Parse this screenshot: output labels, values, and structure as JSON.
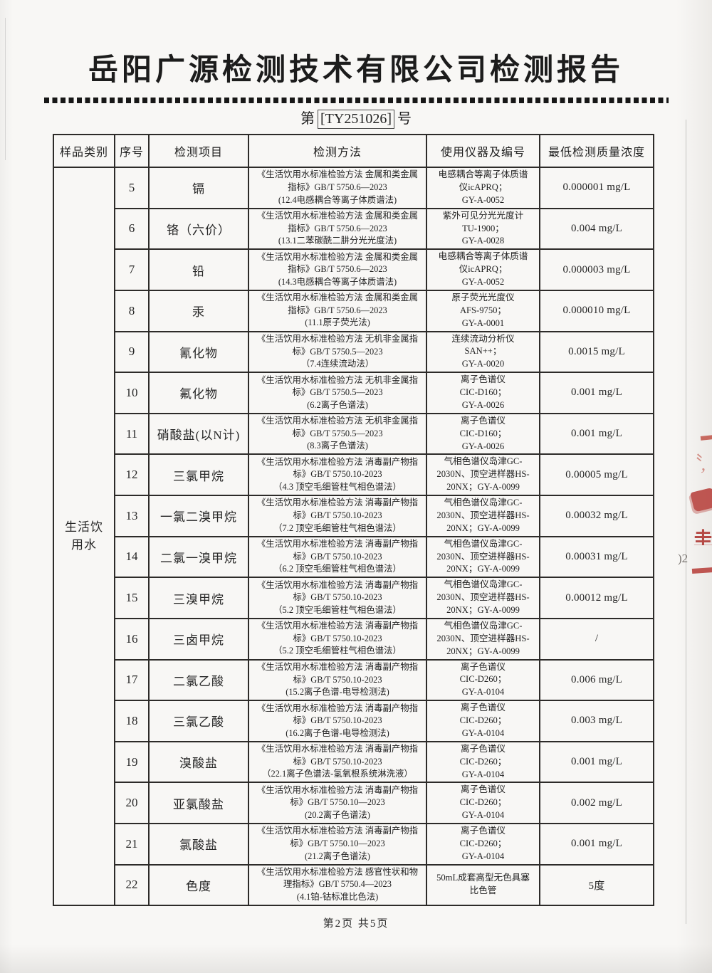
{
  "page": {
    "title": "岳阳广源检测技术有限公司检测报告",
    "doc_no_prefix": "第",
    "doc_no": "[TY251026]",
    "doc_no_suffix": "号",
    "footer": "第2页 共5页"
  },
  "edge_marks": {
    "stamp_color": "#b2302a",
    "stroke_fragment": "〝,",
    "char_fragment": "圭",
    "digits_fragment": ")2"
  },
  "table": {
    "category": "生活饮用水",
    "headers": [
      "样品类别",
      "序号",
      "检测项目",
      "检测方法",
      "使用仪器及编号",
      "最低检测质量浓度"
    ],
    "rows": [
      {
        "no": "5",
        "item": "镉",
        "method": [
          "《生活饮用水标准检验方法 金属和类金属",
          "指标》GB/T 5750.6—2023",
          "(12.4电感耦合等离子体质谱法)"
        ],
        "instrument": [
          "电感耦合等离子体质谱",
          "仪icAPRQ；",
          "GY-A-0052"
        ],
        "limit": "0.000001 mg/L"
      },
      {
        "no": "6",
        "item": "铬（六价）",
        "method": [
          "《生活饮用水标准检验方法 金属和类金属",
          "指标》GB/T 5750.6—2023",
          "(13.1二苯碳酰二肼分光光度法)"
        ],
        "instrument": [
          "紫外可见分光光度计",
          "TU-1900；",
          "GY-A-0028"
        ],
        "limit": "0.004 mg/L"
      },
      {
        "no": "7",
        "item": "铅",
        "method": [
          "《生活饮用水标准检验方法 金属和类金属",
          "指标》GB/T 5750.6—2023",
          "(14.3电感耦合等离子体质谱法)"
        ],
        "instrument": [
          "电感耦合等离子体质谱",
          "仪icAPRQ；",
          "GY-A-0052"
        ],
        "limit": "0.000003 mg/L"
      },
      {
        "no": "8",
        "item": "汞",
        "method": [
          "《生活饮用水标准检验方法 金属和类金属",
          "指标》GB/T 5750.6—2023",
          "(11.1原子荧光法)"
        ],
        "instrument": [
          "原子荧光光度仪",
          "AFS-9750；",
          "GY-A-0001"
        ],
        "limit": "0.000010 mg/L"
      },
      {
        "no": "9",
        "item": "氰化物",
        "method": [
          "《生活饮用水标准检验方法 无机非金属指",
          "标》GB/T 5750.5—2023",
          "（7.4连续流动法）"
        ],
        "instrument": [
          "连续流动分析仪",
          "SAN++；",
          "GY-A-0020"
        ],
        "limit": "0.0015 mg/L"
      },
      {
        "no": "10",
        "item": "氟化物",
        "method": [
          "《生活饮用水标准检验方法 无机非金属指",
          "标》GB/T 5750.5—2023",
          "(6.2离子色谱法)"
        ],
        "instrument": [
          "离子色谱仪",
          "CIC-D160；",
          "GY-A-0026"
        ],
        "limit": "0.001 mg/L"
      },
      {
        "no": "11",
        "item": "硝酸盐(以N计)",
        "method": [
          "《生活饮用水标准检验方法 无机非金属指",
          "标》GB/T 5750.5—2023",
          "(8.3离子色谱法)"
        ],
        "instrument": [
          "离子色谱仪",
          "CIC-D160；",
          "GY-A-0026"
        ],
        "limit": "0.001 mg/L"
      },
      {
        "no": "12",
        "item": "三氯甲烷",
        "method": [
          "《生活饮用水标准检验方法 消毒副产物指",
          "标》GB/T 5750.10-2023",
          "（4.3 顶空毛细管柱气相色谱法）"
        ],
        "instrument": [
          "气相色谱仪岛津GC-",
          "2030N、顶空进样器HS-",
          "20NX；GY-A-0099"
        ],
        "limit": "0.00005 mg/L"
      },
      {
        "no": "13",
        "item": "一氯二溴甲烷",
        "method": [
          "《生活饮用水标准检验方法 消毒副产物指",
          "标》GB/T 5750.10-2023",
          "（7.2 顶空毛细管柱气相色谱法）"
        ],
        "instrument": [
          "气相色谱仪岛津GC-",
          "2030N、顶空进样器HS-",
          "20NX；GY-A-0099"
        ],
        "limit": "0.00032 mg/L"
      },
      {
        "no": "14",
        "item": "二氯一溴甲烷",
        "method": [
          "《生活饮用水标准检验方法 消毒副产物指",
          "标》GB/T 5750.10-2023",
          "（6.2 顶空毛细管柱气相色谱法）"
        ],
        "instrument": [
          "气相色谱仪岛津GC-",
          "2030N、顶空进样器HS-",
          "20NX；GY-A-0099"
        ],
        "limit": "0.00031 mg/L"
      },
      {
        "no": "15",
        "item": "三溴甲烷",
        "method": [
          "《生活饮用水标准检验方法 消毒副产物指",
          "标》GB/T 5750.10-2023",
          "（5.2 顶空毛细管柱气相色谱法）"
        ],
        "instrument": [
          "气相色谱仪岛津GC-",
          "2030N、顶空进样器HS-",
          "20NX；GY-A-0099"
        ],
        "limit": "0.00012 mg/L"
      },
      {
        "no": "16",
        "item": "三卤甲烷",
        "method": [
          "《生活饮用水标准检验方法 消毒副产物指",
          "标》GB/T 5750.10-2023",
          "（5.2 顶空毛细管柱气相色谱法）"
        ],
        "instrument": [
          "气相色谱仪岛津GC-",
          "2030N、顶空进样器HS-",
          "20NX；GY-A-0099"
        ],
        "limit": "/"
      },
      {
        "no": "17",
        "item": "二氯乙酸",
        "method": [
          "《生活饮用水标准检验方法 消毒副产物指",
          "标》GB/T 5750.10-2023",
          "(15.2离子色谱-电导检测法)"
        ],
        "instrument": [
          "离子色谱仪",
          "CIC-D260；",
          "GY-A-0104"
        ],
        "limit": "0.006 mg/L"
      },
      {
        "no": "18",
        "item": "三氯乙酸",
        "method": [
          "《生活饮用水标准检验方法 消毒副产物指",
          "标》GB/T 5750.10-2023",
          "(16.2离子色谱-电导检测法)"
        ],
        "instrument": [
          "离子色谱仪",
          "CIC-D260；",
          "GY-A-0104"
        ],
        "limit": "0.003 mg/L"
      },
      {
        "no": "19",
        "item": "溴酸盐",
        "method": [
          "《生活饮用水标准检验方法 消毒副产物指",
          "标》GB/T 5750.10-2023",
          "（22.1离子色谱法-氢氧根系统淋洗液）"
        ],
        "instrument": [
          "离子色谱仪",
          "CIC-D260；",
          "GY-A-0104"
        ],
        "limit": "0.001 mg/L"
      },
      {
        "no": "20",
        "item": "亚氯酸盐",
        "method": [
          "《生活饮用水标准检验方法 消毒副产物指",
          "标》GB/T 5750.10—2023",
          "(20.2离子色谱法)"
        ],
        "instrument": [
          "离子色谱仪",
          "CIC-D260；",
          "GY-A-0104"
        ],
        "limit": "0.002 mg/L"
      },
      {
        "no": "21",
        "item": "氯酸盐",
        "method": [
          "《生活饮用水标准检验方法 消毒副产物指",
          "标》GB/T 5750.10—2023",
          "(21.2离子色谱法)"
        ],
        "instrument": [
          "离子色谱仪",
          "CIC-D260；",
          "GY-A-0104"
        ],
        "limit": "0.001 mg/L"
      },
      {
        "no": "22",
        "item": "色度",
        "method": [
          "《生活饮用水标准检验方法 感官性状和物",
          "理指标》GB/T 5750.4—2023",
          "(4.1铂-钴标准比色法)"
        ],
        "instrument": [
          "50mL成套高型无色具塞",
          "比色管"
        ],
        "limit": "5度"
      }
    ]
  }
}
